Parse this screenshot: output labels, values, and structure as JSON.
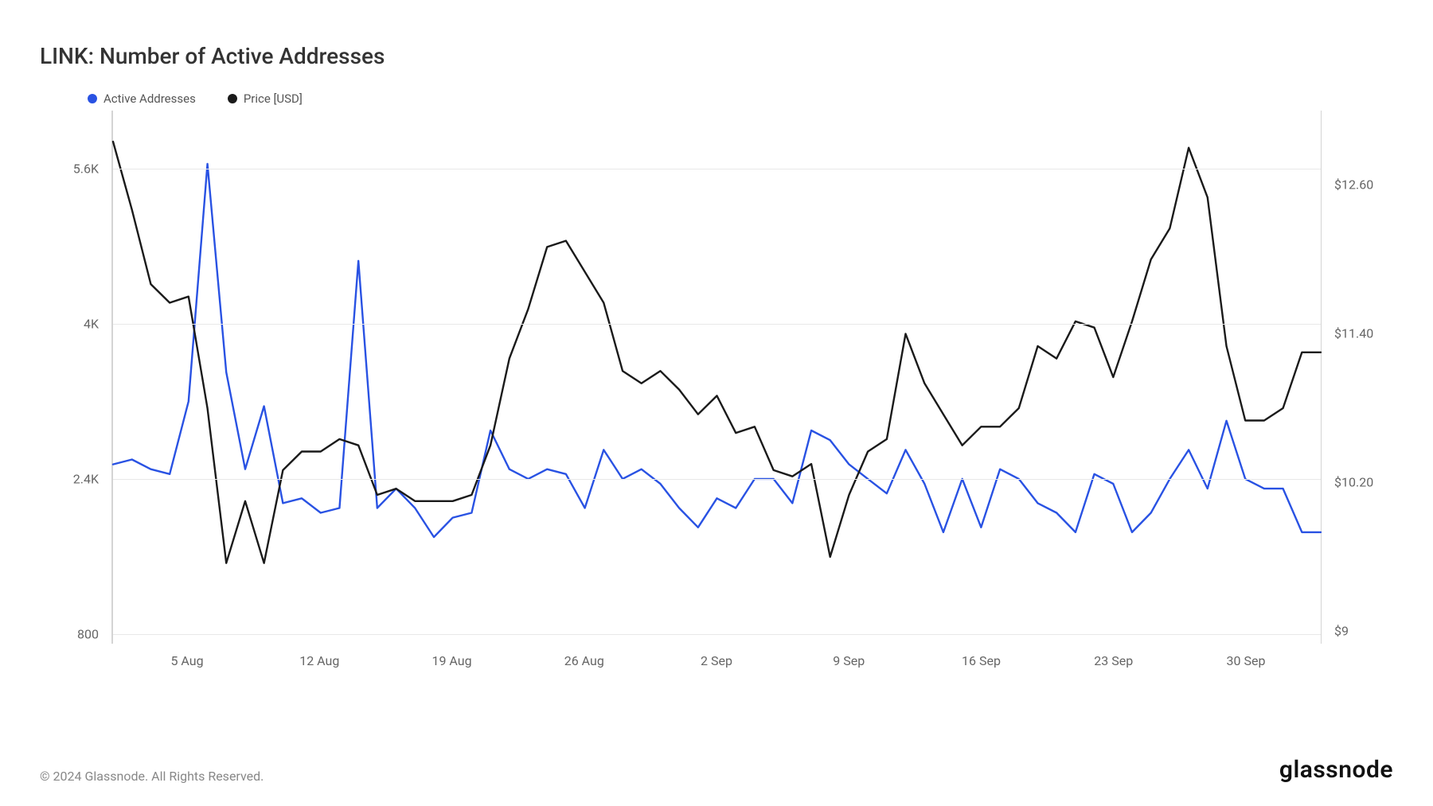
{
  "title": "LINK: Number of Active Addresses",
  "legend": {
    "series1": {
      "label": "Active Addresses",
      "color": "#2952e3"
    },
    "series2": {
      "label": "Price [USD]",
      "color": "#1a1a1a"
    }
  },
  "copyright": "© 2024 Glassnode. All Rights Reserved.",
  "brand": "glassnode",
  "chart": {
    "type": "line",
    "background_color": "#ffffff",
    "grid_color": "#e8e8e8",
    "axis_color": "#d4d4d4",
    "left_axis": {
      "label_fontsize": 16,
      "label_color": "#666666",
      "ticks": [
        {
          "value": 800,
          "label": "800"
        },
        {
          "value": 2400,
          "label": "2.4K"
        },
        {
          "value": 4000,
          "label": "4K"
        },
        {
          "value": 5600,
          "label": "5.6K"
        }
      ],
      "ymin": 700,
      "ymax": 6200
    },
    "right_axis": {
      "label_fontsize": 16,
      "label_color": "#666666",
      "ticks": [
        {
          "value": 9.0,
          "label": "$9"
        },
        {
          "value": 10.2,
          "label": "$10.20"
        },
        {
          "value": 11.4,
          "label": "$11.40"
        },
        {
          "value": 12.6,
          "label": "$12.60"
        }
      ],
      "ymin": 8.9,
      "ymax": 13.2
    },
    "x_axis": {
      "min": 0,
      "max": 64,
      "ticks": [
        {
          "pos": 4,
          "label": "5 Aug"
        },
        {
          "pos": 11,
          "label": "12 Aug"
        },
        {
          "pos": 18,
          "label": "19 Aug"
        },
        {
          "pos": 25,
          "label": "26 Aug"
        },
        {
          "pos": 32,
          "label": "2 Sep"
        },
        {
          "pos": 39,
          "label": "9 Sep"
        },
        {
          "pos": 46,
          "label": "16 Sep"
        },
        {
          "pos": 53,
          "label": "23 Sep"
        },
        {
          "pos": 60,
          "label": "30 Sep"
        }
      ]
    },
    "series": {
      "active_addresses": {
        "axis": "left",
        "color": "#2952e3",
        "line_width": 2.4,
        "data": [
          2550,
          2600,
          2500,
          2450,
          3200,
          5650,
          3500,
          2500,
          3150,
          2150,
          2200,
          2050,
          2100,
          4650,
          2100,
          2300,
          2100,
          1800,
          2000,
          2050,
          2900,
          2500,
          2400,
          2500,
          2450,
          2100,
          2700,
          2400,
          2500,
          2350,
          2100,
          1900,
          2200,
          2100,
          2400,
          2400,
          2150,
          2900,
          2800,
          2550,
          2400,
          2250,
          2700,
          2350,
          1850,
          2400,
          1900,
          2500,
          2400,
          2150,
          2050,
          1850,
          2450,
          2350,
          1850,
          2050,
          2400,
          2700,
          2300,
          3000,
          2400,
          2300,
          2300,
          1850,
          1850
        ]
      },
      "price_usd": {
        "axis": "right",
        "color": "#1a1a1a",
        "line_width": 2.4,
        "data": [
          12.95,
          12.4,
          11.8,
          11.65,
          11.7,
          10.8,
          9.55,
          10.05,
          9.55,
          10.3,
          10.45,
          10.45,
          10.55,
          10.5,
          10.1,
          10.15,
          10.05,
          10.05,
          10.05,
          10.1,
          10.5,
          11.2,
          11.6,
          12.1,
          12.15,
          11.9,
          11.65,
          11.1,
          11.0,
          11.1,
          10.95,
          10.75,
          10.9,
          10.6,
          10.65,
          10.3,
          10.25,
          10.35,
          9.6,
          10.1,
          10.45,
          10.55,
          11.4,
          11.0,
          10.75,
          10.5,
          10.65,
          10.65,
          10.8,
          11.3,
          11.2,
          11.5,
          11.45,
          11.05,
          11.5,
          12.0,
          12.25,
          12.9,
          12.5,
          11.3,
          10.7,
          10.7,
          10.8,
          11.25,
          11.25
        ]
      }
    }
  }
}
